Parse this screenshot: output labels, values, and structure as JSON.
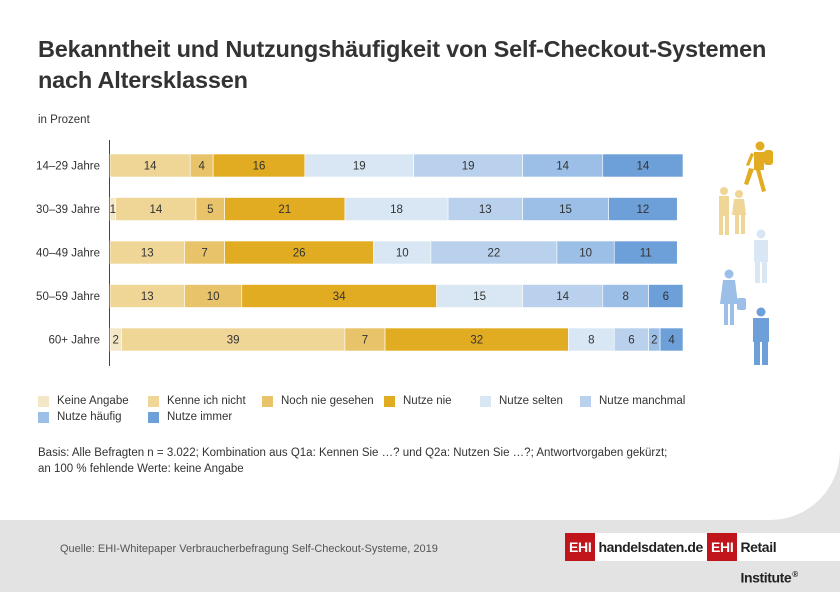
{
  "header": {
    "title": "Bekanntheit und Nutzungshäufigkeit von Self-Checkout-Systemen nach Altersklassen",
    "unit": "in Prozent"
  },
  "colors": {
    "Keine Angabe": "#f4e7c8",
    "Kenne ich nicht": "#efd596",
    "Noch nie gesehen": "#e8c36a",
    "Nutze nie": "#e1ac22",
    "Nutze selten": "#d9e6f4",
    "Nutze manchmal": "#b9d1ec",
    "Nutze häufig": "#9bbfe6",
    "Nutze immer": "#6d9fd9"
  },
  "chart_data": {
    "type": "bar",
    "orientation": "horizontal",
    "stacked": true,
    "xlim": [
      0,
      100
    ],
    "categories": [
      "14–29 Jahre",
      "30–39 Jahre",
      "40–49 Jahre",
      "50–59 Jahre",
      "60+ Jahre"
    ],
    "series": [
      {
        "name": "Keine Angabe",
        "values": [
          0,
          1,
          0,
          0,
          2
        ]
      },
      {
        "name": "Kenne ich nicht",
        "values": [
          14,
          14,
          13,
          13,
          39
        ]
      },
      {
        "name": "Noch nie gesehen",
        "values": [
          4,
          5,
          7,
          10,
          7
        ]
      },
      {
        "name": "Nutze nie",
        "values": [
          16,
          21,
          26,
          34,
          32
        ]
      },
      {
        "name": "Nutze selten",
        "values": [
          19,
          18,
          10,
          15,
          8
        ]
      },
      {
        "name": "Nutze manchmal",
        "values": [
          19,
          13,
          22,
          14,
          6
        ]
      },
      {
        "name": "Nutze häufig",
        "values": [
          14,
          15,
          10,
          8,
          2
        ]
      },
      {
        "name": "Nutze immer",
        "values": [
          14,
          12,
          11,
          6,
          4
        ]
      }
    ]
  },
  "legend": [
    "Keine Angabe",
    "Kenne ich nicht",
    "Noch nie gesehen",
    "Nutze nie",
    "Nutze selten",
    "Nutze manchmal",
    "Nutze häufig",
    "Nutze immer"
  ],
  "figures": {
    "icons": [
      "hiker-icon",
      "walking-couple-icon",
      "standing-man-icon",
      "woman-with-bag-icon",
      "standing-man-icon"
    ],
    "colors": [
      "#e1ac22",
      "#efd596",
      "#d9e6f4",
      "#9bbfe6",
      "#6d9fd9"
    ]
  },
  "footer": {
    "basis_line1": "Basis: Alle Befragten n = 3.022; Kombination aus Q1a: Kennen Sie …? und Q2a: Nutzen Sie …?; Antwortvorgaben gekürzt;",
    "basis_line2": "an 100 % fehlende Werte: keine Angabe",
    "source": "Quelle: EHI-Whitepaper Verbraucherbefragung Self-Checkout-Systeme, 2019"
  },
  "logos": {
    "ehi": "EHI",
    "handelsdaten": "handelsdaten.de",
    "retail_institute": "Retail Institute",
    "registered": "®"
  }
}
